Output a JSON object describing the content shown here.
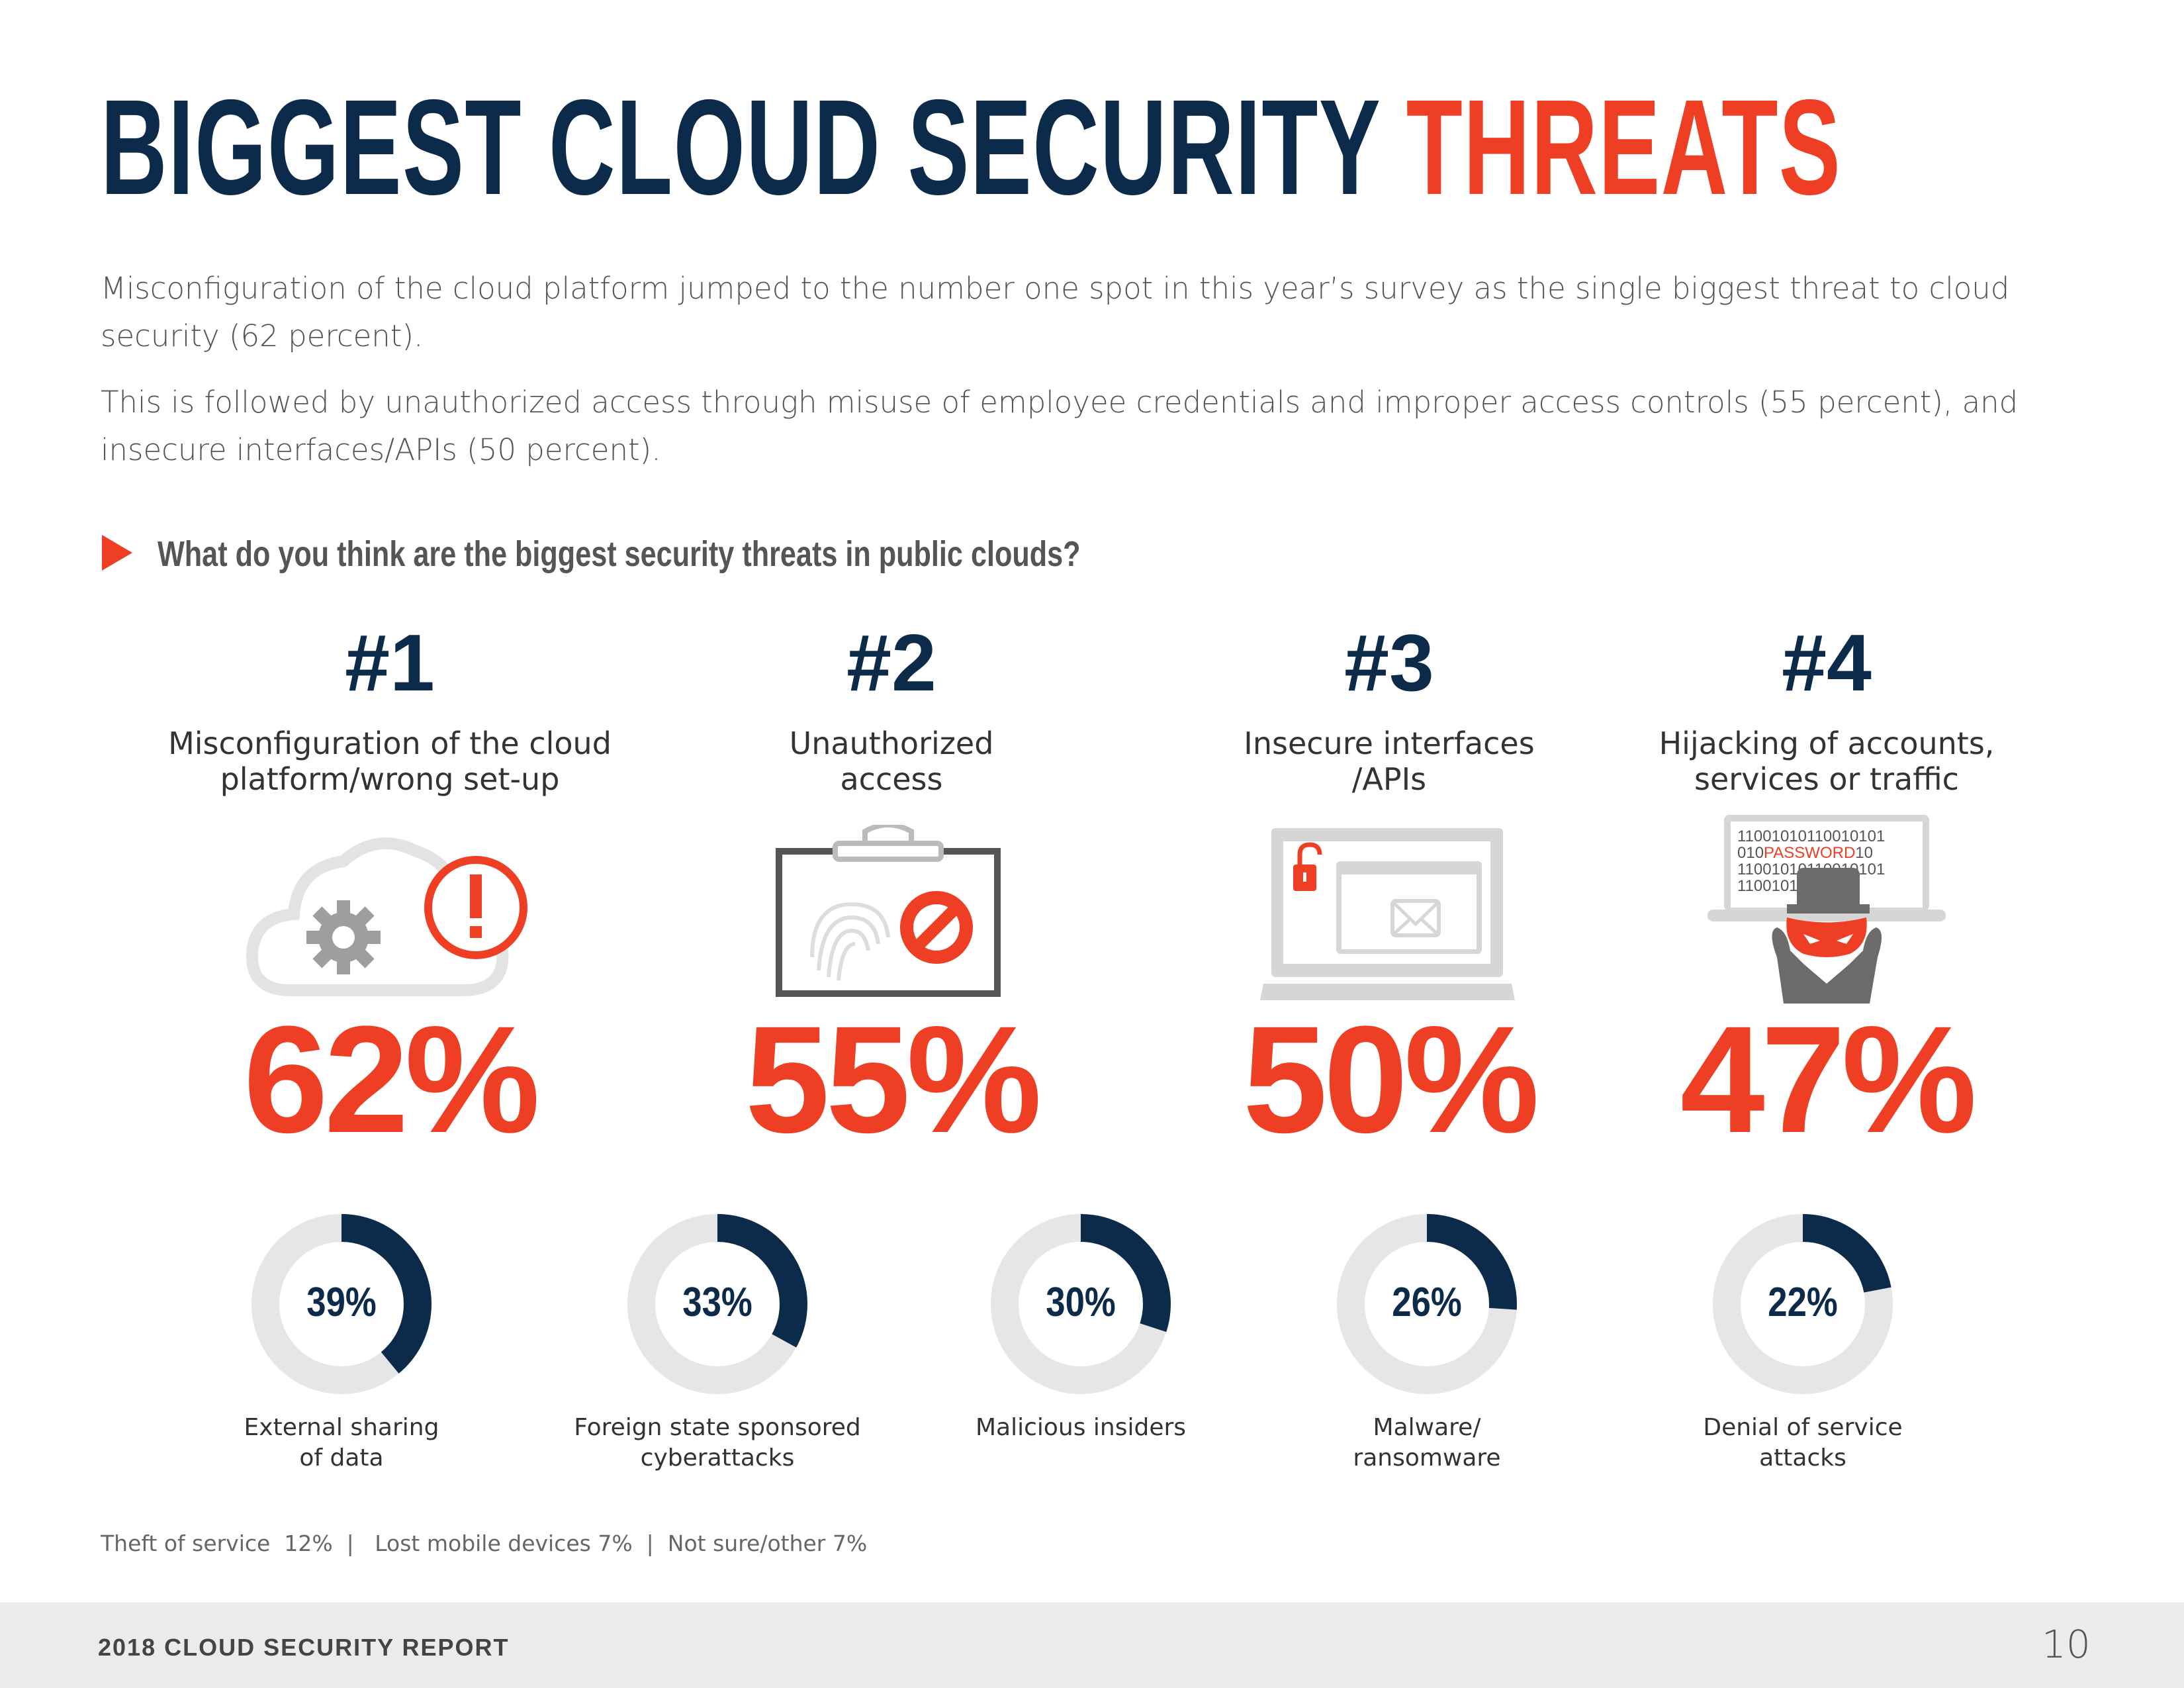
{
  "title": {
    "main": "BIGGEST CLOUD SECURITY ",
    "accent": "THREATS"
  },
  "paragraphs": [
    "Misconfiguration of the cloud platform jumped to the number one spot in this year’s survey as the single biggest threat to cloud security (62 percent).",
    "This is followed by unauthorized access through misuse of employee credentials and improper access controls (55 percent), and insecure interfaces/APIs (50 percent)."
  ],
  "question": "What do you think are the biggest security threats in public clouds?",
  "top_threats": [
    {
      "rank": "#1",
      "label": "Misconfiguration of the cloud platform/wrong set-up",
      "percent": "62%",
      "icon": "cloud-gear-alert-icon"
    },
    {
      "rank": "#2",
      "label": "Unauthorized access",
      "percent": "55%",
      "icon": "fingerprint-blocked-icon"
    },
    {
      "rank": "#3",
      "label": "Insecure interfaces /APIs",
      "percent": "50%",
      "icon": "laptop-unlocked-mail-icon"
    },
    {
      "rank": "#4",
      "label": "Hijacking of accounts, services or traffic",
      "percent": "47%",
      "icon": "hacker-password-icon",
      "screen_text": [
        "1100101011001010​1",
        "010PASSWORD10",
        "1100101011001010​1",
        "110010101"
      ]
    }
  ],
  "other_threats": [
    {
      "label": "External sharing of data",
      "percent": "39%",
      "value": 39
    },
    {
      "label": "Foreign state sponsored cyberattacks",
      "percent": "33%",
      "value": 33
    },
    {
      "label": "Malicious insiders",
      "percent": "30%",
      "value": 30
    },
    {
      "label": "Malware/ ransomware",
      "percent": "26%",
      "value": 26
    },
    {
      "label": "Denial of service attacks",
      "percent": "22%",
      "value": 22
    }
  ],
  "footnote": "Theft of service  12%  |   Lost mobile devices 7%  |  Not sure/other 7%",
  "footer": {
    "report": "2018 CLOUD SECURITY REPORT",
    "page": "10"
  },
  "colors": {
    "navy": "#0c2a4a",
    "orange": "#ee3e23",
    "ring": "#e6e6e6"
  }
}
